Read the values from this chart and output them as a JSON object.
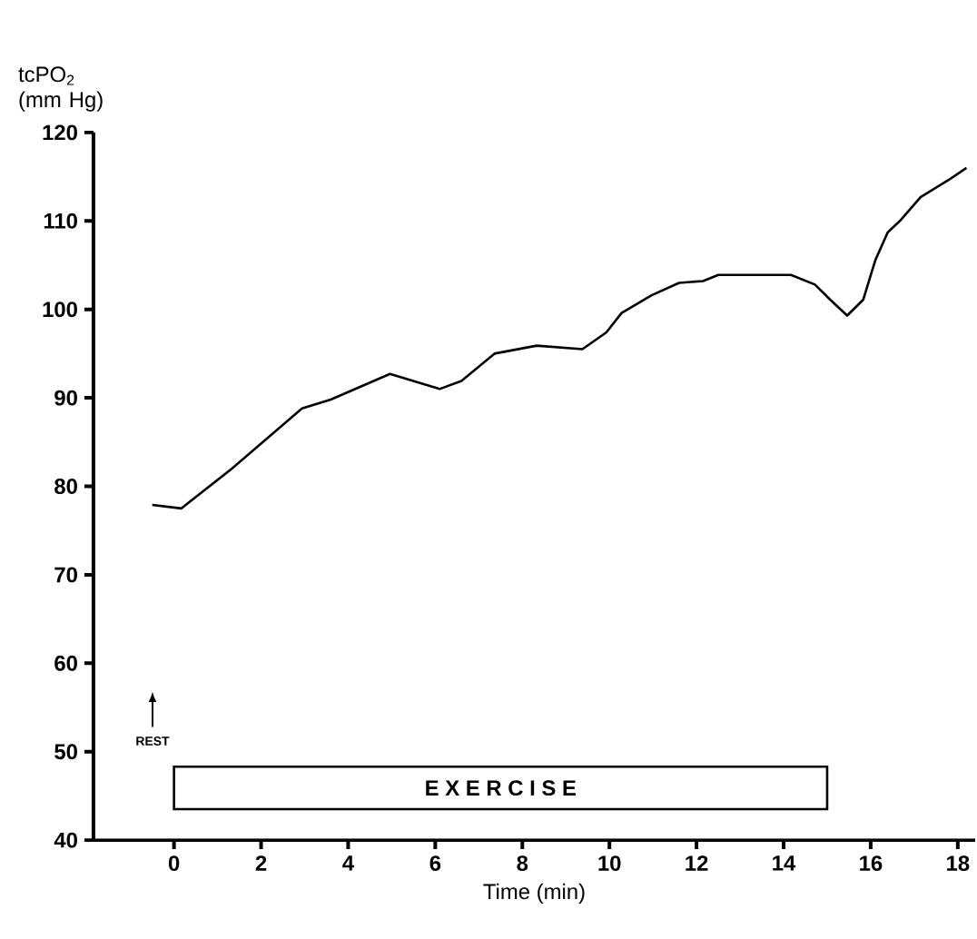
{
  "chart_data": {
    "type": "line",
    "xlabel": "Time (min)",
    "ylabel": "tcPO$_{2}$ (mm Hg)",
    "series": [
      {
        "color": "#000000",
        "x": [
          -0.5,
          0.17,
          1.33,
          2.94,
          3.6,
          4.96,
          6.1,
          6.6,
          7.36,
          8.33,
          9.38,
          9.93,
          10.28,
          10.97,
          11.6,
          12.15,
          12.5,
          14.17,
          14.72,
          15.07,
          15.46,
          15.83,
          16.04,
          16.11,
          16.39,
          16.67,
          17.15,
          17.78,
          18.2
        ],
        "values": [
          77.9,
          77.5,
          82,
          88.8,
          89.8,
          92.7,
          91.0,
          91.9,
          95.0,
          95.9,
          95.5,
          97.4,
          99.6,
          101.6,
          103.0,
          103.2,
          103.9,
          103.9,
          102.8,
          101.1,
          99.3,
          101.1,
          104.5,
          105.6,
          108.7,
          110.0,
          112.7,
          114.6,
          116.0
        ]
      }
    ],
    "xlim": [
      -1.85,
      18.4
    ],
    "ylim": [
      40,
      120
    ],
    "xticks": [
      0,
      2,
      4,
      6,
      8,
      10,
      12,
      14,
      16,
      18
    ],
    "yticks": [
      40,
      50,
      60,
      70,
      80,
      90,
      100,
      110,
      120
    ],
    "bands": [
      {
        "axis": "x",
        "from": 0,
        "to": 15,
        "label": "E X E R C I S E",
        "color": "#ffffff"
      }
    ],
    "annotations": [
      "REST"
    ],
    "marker": "none",
    "line_style": "solid",
    "grid": false
  }
}
